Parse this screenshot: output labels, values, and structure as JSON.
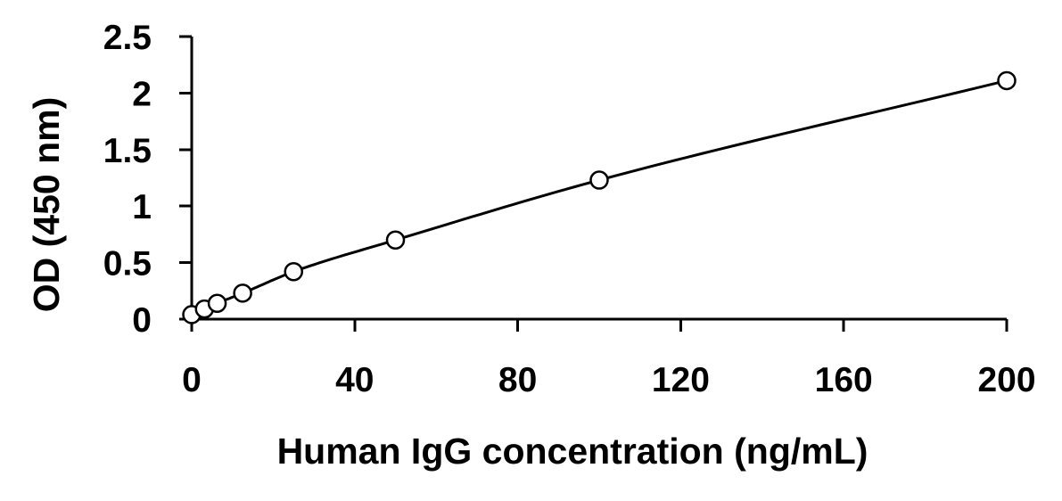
{
  "chart_data": {
    "type": "scatter",
    "title": "",
    "xlabel": "Human IgG concentration (ng/mL)",
    "ylabel": "OD (450 nm)",
    "xlim": [
      0,
      200
    ],
    "ylim": [
      0,
      2.5
    ],
    "xticks": [
      0,
      40,
      80,
      120,
      160,
      200
    ],
    "yticks": [
      0,
      0.5,
      1,
      1.5,
      2,
      2.5
    ],
    "xtick_labels": [
      "0",
      "40",
      "80",
      "120",
      "160",
      "200"
    ],
    "ytick_labels": [
      "0",
      "0.5",
      "1",
      "1.5",
      "2",
      "2.5"
    ],
    "grid": false,
    "legend": "none",
    "marker": "open-circle",
    "fit_line": "smooth-curve",
    "series": [
      {
        "x": [
          0,
          3.125,
          6.25,
          12.5,
          25,
          50,
          100,
          200
        ],
        "y": [
          0.04,
          0.09,
          0.14,
          0.23,
          0.42,
          0.7,
          1.23,
          2.11
        ]
      }
    ]
  }
}
